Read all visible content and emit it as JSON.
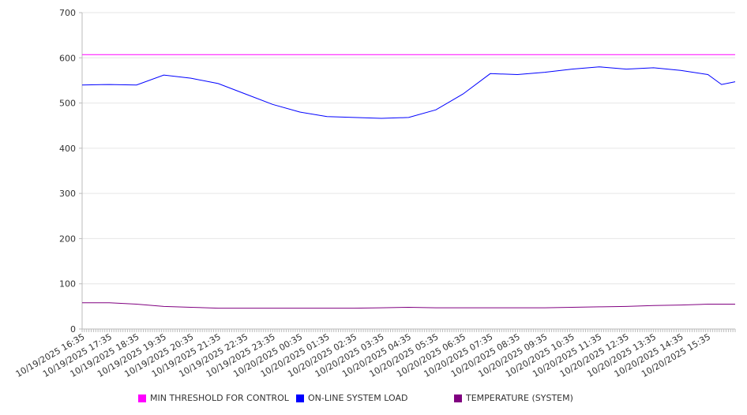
{
  "chart_data": {
    "type": "line",
    "title": "",
    "xlabel": "",
    "ylabel": "",
    "ylim": [
      0,
      700
    ],
    "yticks": [
      0,
      100,
      200,
      300,
      400,
      500,
      600,
      700
    ],
    "x_hours": [
      0,
      1,
      2,
      3,
      4,
      5,
      6,
      7,
      8,
      9,
      10,
      11,
      12,
      13,
      14,
      15,
      16,
      17,
      18,
      19,
      20,
      21,
      22,
      23,
      23.5,
      24
    ],
    "xtick_labels": [
      "10/19/2025 16:35",
      "10/19/2025 17:35",
      "10/19/2025 18:35",
      "10/19/2025 19:35",
      "10/19/2025 20:35",
      "10/19/2025 21:35",
      "10/19/2025 22:35",
      "10/19/2025 23:35",
      "10/20/2025 00:35",
      "10/20/2025 01:35",
      "10/20/2025 02:35",
      "10/20/2025 03:35",
      "10/20/2025 04:35",
      "10/20/2025 05:35",
      "10/20/2025 06:35",
      "10/20/2025 07:35",
      "10/20/2025 08:35",
      "10/20/2025 09:35",
      "10/20/2025 10:35",
      "10/20/2025 11:35",
      "10/20/2025 12:35",
      "10/20/2025 13:35",
      "10/20/2025 14:35",
      "10/20/2025 15:35"
    ],
    "grid": true,
    "legend_position": "bottom",
    "series": [
      {
        "name": "MIN THRESHOLD FOR CONTROL",
        "color": "#ff00ff",
        "values": [
          607,
          607,
          607,
          607,
          607,
          607,
          607,
          607,
          607,
          607,
          607,
          607,
          607,
          607,
          607,
          607,
          607,
          607,
          607,
          607,
          607,
          607,
          607,
          607,
          607,
          607
        ]
      },
      {
        "name": "ON-LINE SYSTEM LOAD",
        "color": "#0000ff",
        "values": [
          540,
          541,
          540,
          562,
          555,
          543,
          520,
          497,
          480,
          470,
          468,
          466,
          468,
          485,
          520,
          565,
          563,
          568,
          575,
          580,
          575,
          578,
          572,
          563,
          541,
          547
        ]
      },
      {
        "name": "TEMPERATURE (SYSTEM)",
        "color": "#800080",
        "values": [
          58,
          58,
          55,
          50,
          48,
          46,
          46,
          46,
          46,
          46,
          46,
          47,
          48,
          47,
          47,
          47,
          47,
          47,
          48,
          49,
          50,
          52,
          53,
          55,
          55,
          55
        ]
      }
    ]
  }
}
